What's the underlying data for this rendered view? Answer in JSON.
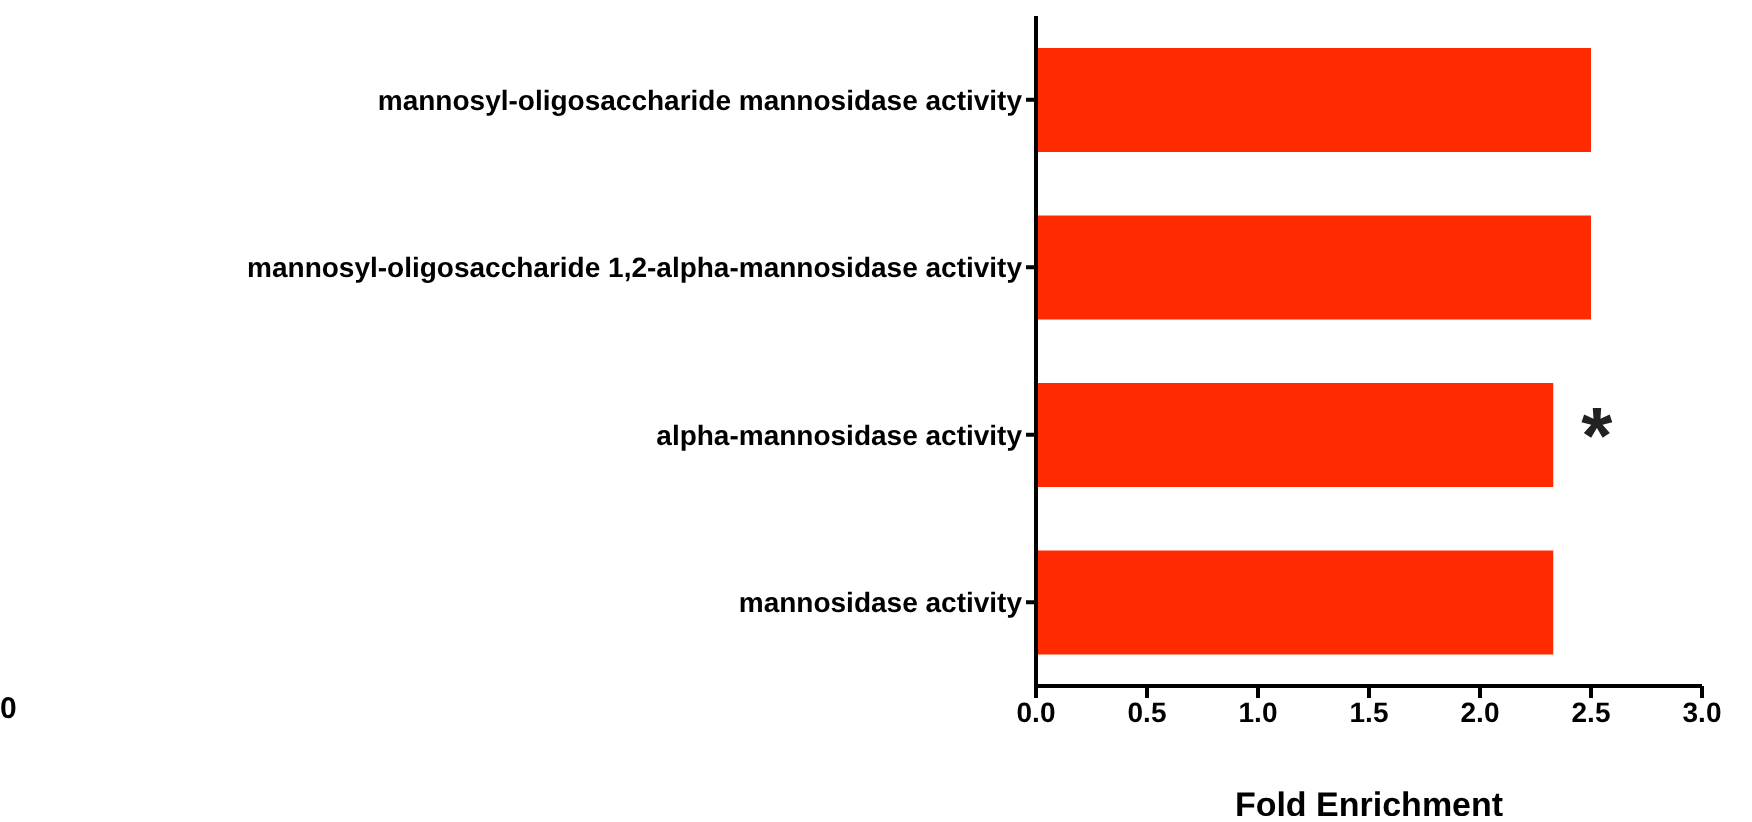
{
  "chart_data": {
    "type": "bar",
    "orientation": "horizontal",
    "xlabel": "Fold Enrichment",
    "categories": [
      "mannosyl-oligosaccharide mannosidase activity",
      "mannosyl-oligosaccharide 1,2-alpha-mannosidase activity",
      "alpha-mannosidase activity",
      "mannosidase activity"
    ],
    "values": [
      2.5,
      2.5,
      2.33,
      2.33
    ],
    "color": "#ff2a00",
    "xlim": [
      0,
      3
    ],
    "xticks": [
      {
        "value": 0,
        "label": "0.0"
      },
      {
        "value": 0.5,
        "label": "0.5"
      },
      {
        "value": 1,
        "label": "1.0"
      },
      {
        "value": 1.5,
        "label": "1.5"
      },
      {
        "value": 2,
        "label": "2.0"
      },
      {
        "value": 2.5,
        "label": "2.5"
      },
      {
        "value": 3,
        "label": "3.0"
      }
    ],
    "grid": false,
    "legend": false,
    "annotations": [
      {
        "text": "*",
        "x": 2.33,
        "y": "alpha-mannosidase activity"
      },
      "0"
    ]
  }
}
